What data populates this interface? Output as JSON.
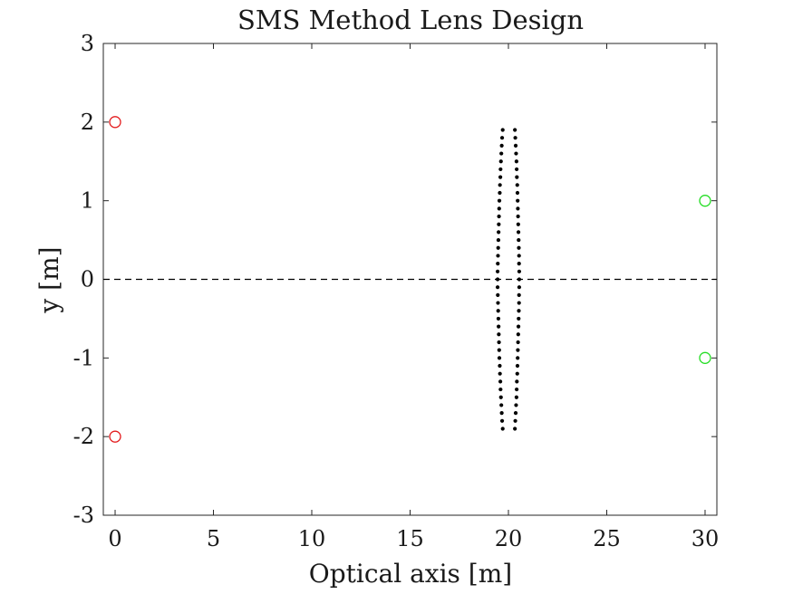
{
  "chart_data": {
    "type": "scatter",
    "title": "SMS Method Lens Design",
    "xlabel": "Optical axis [m]",
    "ylabel": "y [m]",
    "xlim": [
      -0.6,
      30.6
    ],
    "ylim": [
      -3,
      3
    ],
    "xticks": [
      0,
      5,
      10,
      15,
      20,
      25,
      30
    ],
    "yticks": [
      -3,
      -2,
      -1,
      0,
      1,
      2,
      3
    ],
    "xtick_labels": [
      "0",
      "5",
      "10",
      "15",
      "20",
      "25",
      "30"
    ],
    "ytick_labels": [
      "-3",
      "-2",
      "-1",
      "0",
      "1",
      "2",
      "3"
    ],
    "grid": false,
    "optical_axis_line": {
      "y": 0,
      "style": "dashed",
      "color": "#000000"
    },
    "colors": {
      "sources": "#e31a1c",
      "receivers": "#22dd22",
      "lens_points": "#000000"
    },
    "series": [
      {
        "marker": "open-circle",
        "color": "#e31a1c",
        "points": [
          [
            0,
            2
          ],
          [
            0,
            -2
          ]
        ]
      },
      {
        "marker": "open-circle",
        "color": "#22dd22",
        "points": [
          [
            30,
            1
          ],
          [
            30,
            -1
          ]
        ]
      },
      {
        "marker": "dot",
        "color": "#000000",
        "points": [
          [
            19.45,
            0.0
          ],
          [
            19.45,
            0.1
          ],
          [
            19.46,
            0.2
          ],
          [
            19.47,
            0.3
          ],
          [
            19.48,
            0.4
          ],
          [
            19.49,
            0.5
          ],
          [
            19.5,
            0.6
          ],
          [
            19.51,
            0.7
          ],
          [
            19.52,
            0.8
          ],
          [
            19.53,
            0.9
          ],
          [
            19.54,
            1.0
          ],
          [
            19.56,
            1.1
          ],
          [
            19.57,
            1.2
          ],
          [
            19.59,
            1.3
          ],
          [
            19.6,
            1.4
          ],
          [
            19.62,
            1.5
          ],
          [
            19.64,
            1.6
          ],
          [
            19.66,
            1.7
          ],
          [
            19.68,
            1.8
          ],
          [
            19.71,
            1.9
          ],
          [
            19.45,
            -0.1
          ],
          [
            19.46,
            -0.2
          ],
          [
            19.47,
            -0.3
          ],
          [
            19.48,
            -0.4
          ],
          [
            19.49,
            -0.5
          ],
          [
            19.5,
            -0.6
          ],
          [
            19.51,
            -0.7
          ],
          [
            19.52,
            -0.8
          ],
          [
            19.53,
            -0.9
          ],
          [
            19.54,
            -1.0
          ],
          [
            19.56,
            -1.1
          ],
          [
            19.57,
            -1.2
          ],
          [
            19.59,
            -1.3
          ],
          [
            19.6,
            -1.4
          ],
          [
            19.62,
            -1.5
          ],
          [
            19.64,
            -1.6
          ],
          [
            19.66,
            -1.7
          ],
          [
            19.68,
            -1.8
          ],
          [
            19.71,
            -1.9
          ],
          [
            20.55,
            0.0
          ],
          [
            20.55,
            0.1
          ],
          [
            20.54,
            0.2
          ],
          [
            20.54,
            0.3
          ],
          [
            20.53,
            0.4
          ],
          [
            20.52,
            0.5
          ],
          [
            20.51,
            0.6
          ],
          [
            20.5,
            0.7
          ],
          [
            20.49,
            0.8
          ],
          [
            20.48,
            0.9
          ],
          [
            20.47,
            1.0
          ],
          [
            20.46,
            1.1
          ],
          [
            20.45,
            1.2
          ],
          [
            20.43,
            1.3
          ],
          [
            20.42,
            1.4
          ],
          [
            20.41,
            1.5
          ],
          [
            20.39,
            1.6
          ],
          [
            20.37,
            1.7
          ],
          [
            20.35,
            1.8
          ],
          [
            20.33,
            1.9
          ],
          [
            20.55,
            -0.1
          ],
          [
            20.54,
            -0.2
          ],
          [
            20.54,
            -0.3
          ],
          [
            20.53,
            -0.4
          ],
          [
            20.52,
            -0.5
          ],
          [
            20.51,
            -0.6
          ],
          [
            20.5,
            -0.7
          ],
          [
            20.49,
            -0.8
          ],
          [
            20.48,
            -0.9
          ],
          [
            20.47,
            -1.0
          ],
          [
            20.46,
            -1.1
          ],
          [
            20.45,
            -1.2
          ],
          [
            20.43,
            -1.3
          ],
          [
            20.42,
            -1.4
          ],
          [
            20.41,
            -1.5
          ],
          [
            20.39,
            -1.6
          ],
          [
            20.37,
            -1.7
          ],
          [
            20.35,
            -1.8
          ],
          [
            20.33,
            -1.9
          ]
        ]
      }
    ]
  }
}
